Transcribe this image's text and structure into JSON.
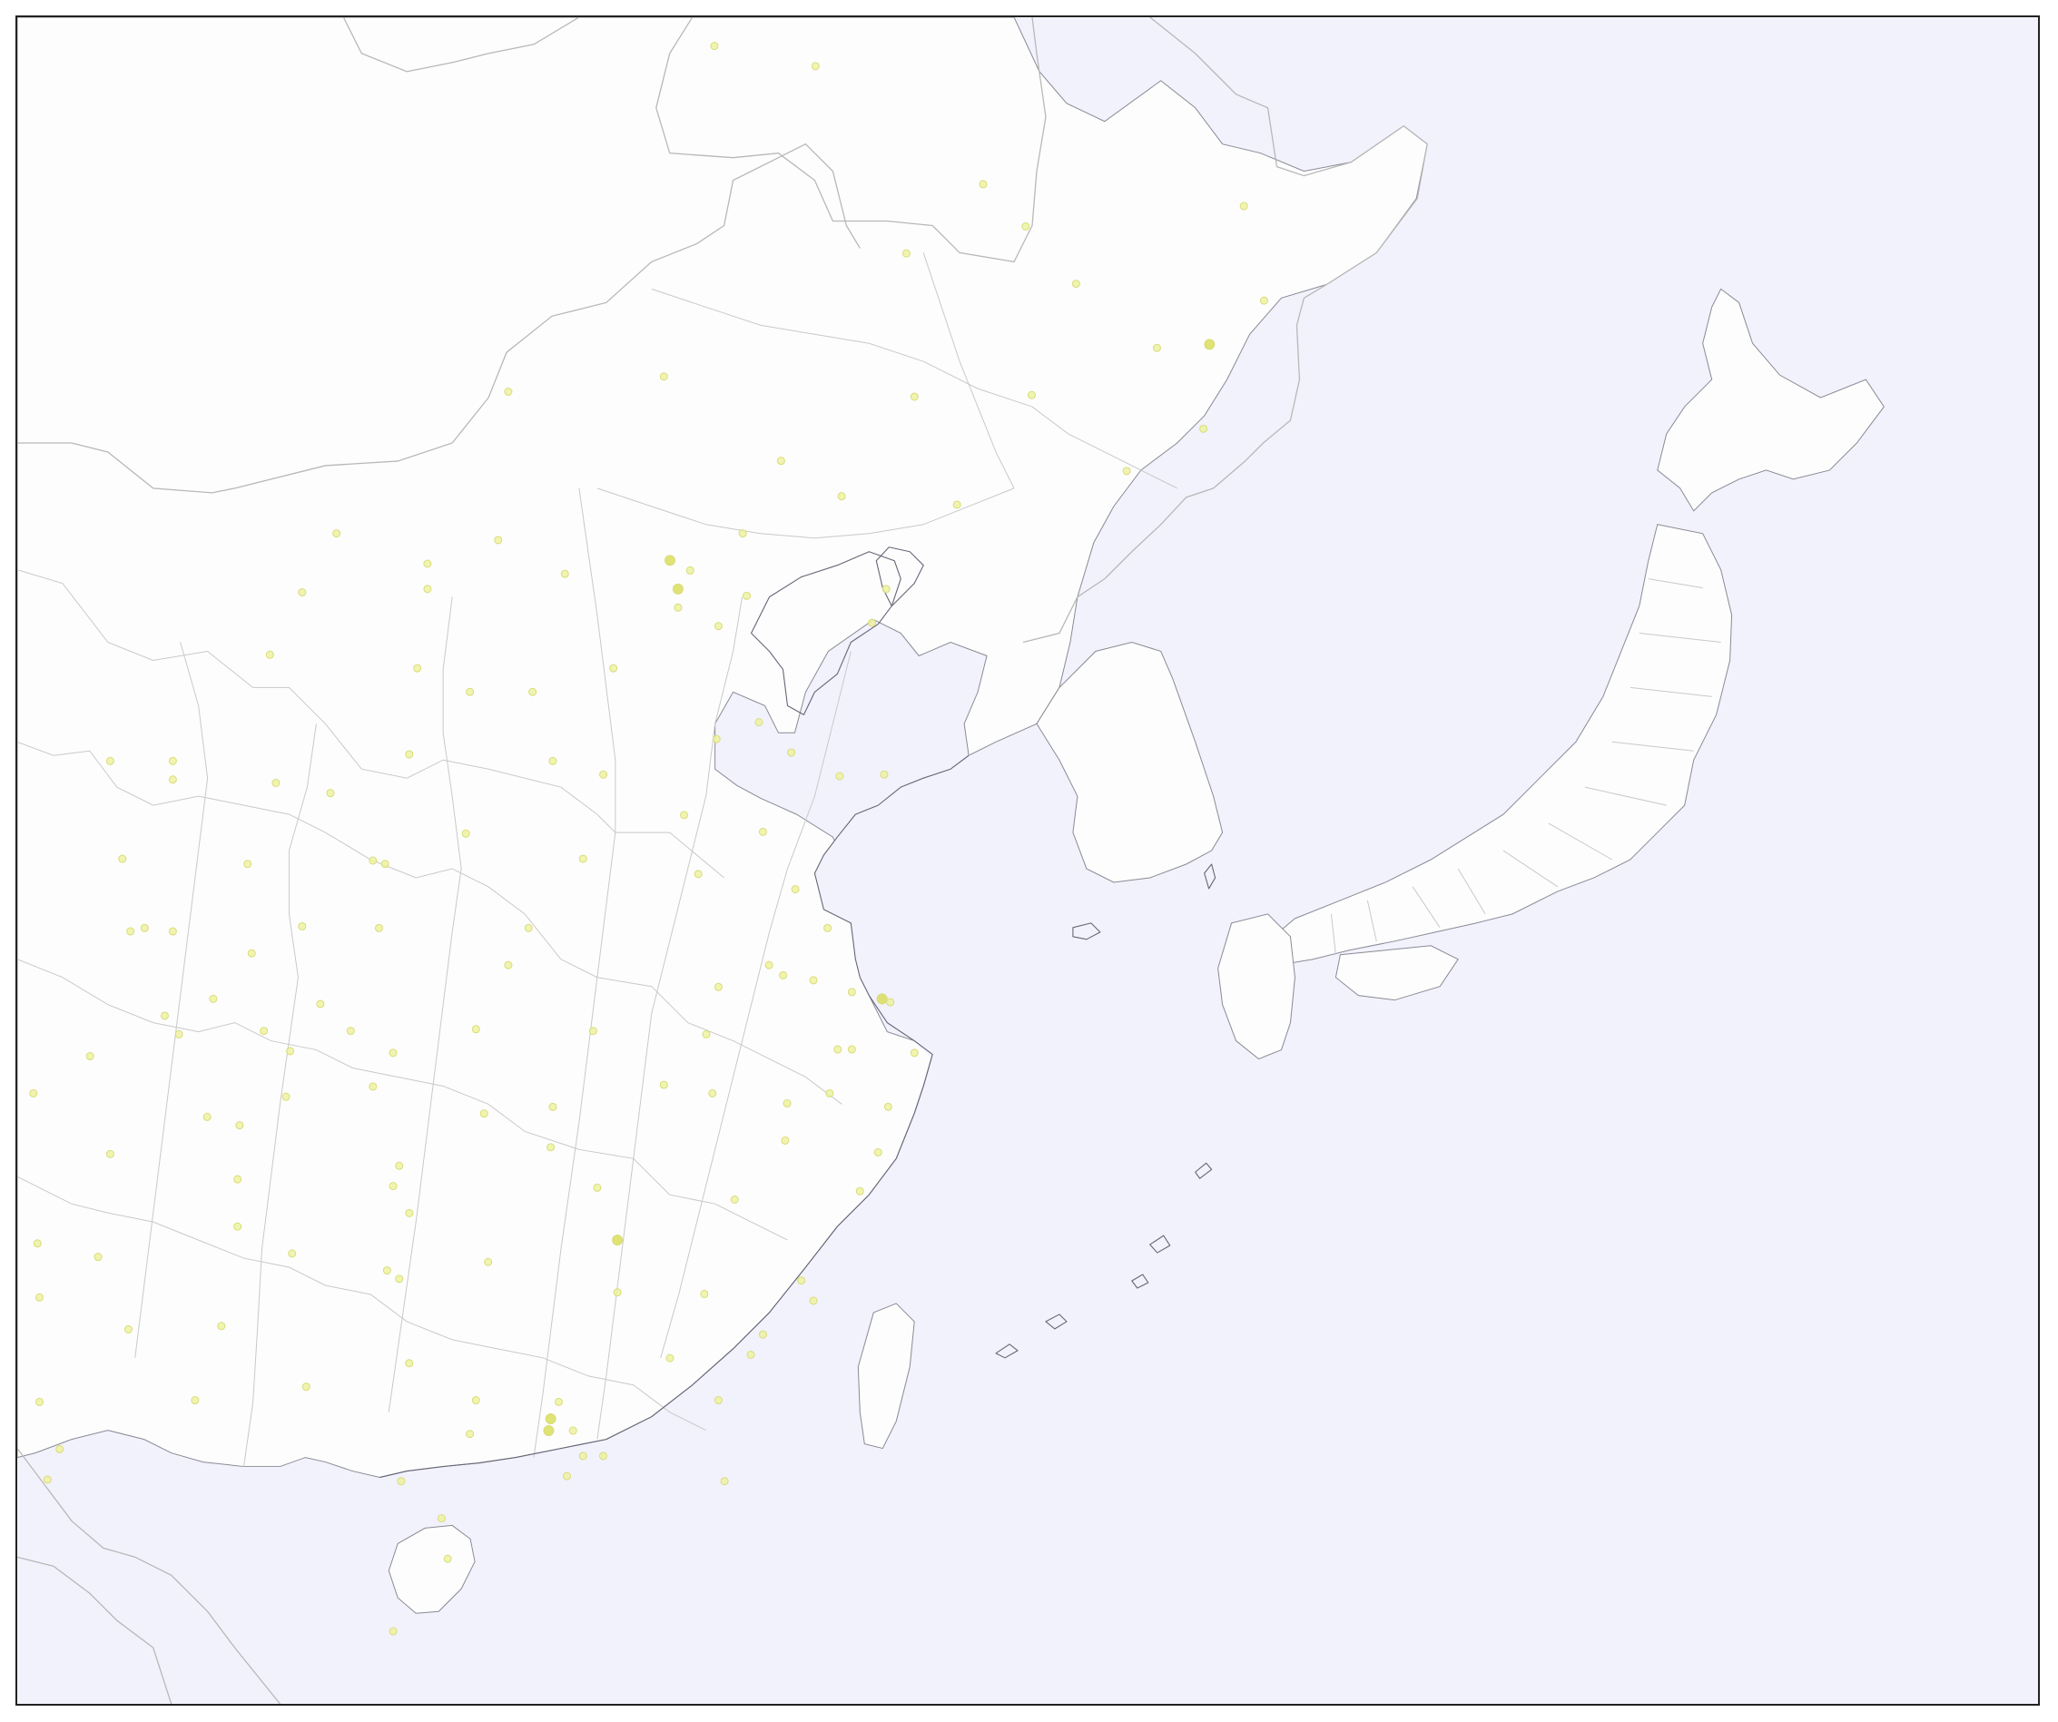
{
  "colors": {
    "frame": "#222222",
    "land": "#fdfdfd",
    "sea": "#f2f2fd",
    "sea_deep": "#f0f0fc",
    "coast": "#666677",
    "border": "#b8b8b8",
    "province": "#c9c9c9",
    "point_fill": "#eef2a0",
    "point_stroke": "#d8dc7a",
    "point_dense": "#d9de5c"
  },
  "points": [
    [
      0.345,
      0.017,
      1
    ],
    [
      0.395,
      0.029,
      1
    ],
    [
      0.478,
      0.099,
      1
    ],
    [
      0.499,
      0.124,
      1
    ],
    [
      0.607,
      0.112,
      1
    ],
    [
      0.44,
      0.14,
      1
    ],
    [
      0.524,
      0.158,
      1
    ],
    [
      0.617,
      0.168,
      1
    ],
    [
      0.59,
      0.194,
      2
    ],
    [
      0.564,
      0.196,
      1
    ],
    [
      0.243,
      0.222,
      1
    ],
    [
      0.32,
      0.213,
      1
    ],
    [
      0.444,
      0.225,
      1
    ],
    [
      0.502,
      0.224,
      1
    ],
    [
      0.587,
      0.244,
      1
    ],
    [
      0.378,
      0.263,
      1
    ],
    [
      0.408,
      0.284,
      1
    ],
    [
      0.465,
      0.289,
      1
    ],
    [
      0.549,
      0.269,
      1
    ],
    [
      0.158,
      0.306,
      1
    ],
    [
      0.238,
      0.31,
      1
    ],
    [
      0.203,
      0.324,
      1
    ],
    [
      0.359,
      0.306,
      1
    ],
    [
      0.323,
      0.322,
      2
    ],
    [
      0.333,
      0.328,
      1
    ],
    [
      0.271,
      0.33,
      1
    ],
    [
      0.203,
      0.339,
      1
    ],
    [
      0.327,
      0.35,
      1
    ],
    [
      0.327,
      0.339,
      2
    ],
    [
      0.361,
      0.343,
      1
    ],
    [
      0.141,
      0.341,
      1
    ],
    [
      0.43,
      0.339,
      1
    ],
    [
      0.423,
      0.359,
      1
    ],
    [
      0.347,
      0.361,
      1
    ],
    [
      0.125,
      0.378,
      1
    ],
    [
      0.198,
      0.386,
      1
    ],
    [
      0.295,
      0.386,
      1
    ],
    [
      0.224,
      0.4,
      1
    ],
    [
      0.255,
      0.4,
      1
    ],
    [
      0.367,
      0.418,
      1
    ],
    [
      0.346,
      0.428,
      1
    ],
    [
      0.383,
      0.436,
      1
    ],
    [
      0.046,
      0.441,
      1
    ],
    [
      0.077,
      0.441,
      1
    ],
    [
      0.194,
      0.437,
      1
    ],
    [
      0.265,
      0.441,
      1
    ],
    [
      0.29,
      0.449,
      1
    ],
    [
      0.407,
      0.45,
      1
    ],
    [
      0.429,
      0.449,
      1
    ],
    [
      0.077,
      0.452,
      1
    ],
    [
      0.128,
      0.454,
      1
    ],
    [
      0.155,
      0.46,
      1
    ],
    [
      0.33,
      0.473,
      1
    ],
    [
      0.369,
      0.483,
      1
    ],
    [
      0.222,
      0.484,
      1
    ],
    [
      0.28,
      0.499,
      1
    ],
    [
      0.052,
      0.499,
      1
    ],
    [
      0.114,
      0.502,
      1
    ],
    [
      0.176,
      0.5,
      1
    ],
    [
      0.182,
      0.502,
      1
    ],
    [
      0.337,
      0.508,
      1
    ],
    [
      0.385,
      0.517,
      1
    ],
    [
      0.141,
      0.539,
      1
    ],
    [
      0.056,
      0.542,
      1
    ],
    [
      0.063,
      0.54,
      1
    ],
    [
      0.077,
      0.542,
      1
    ],
    [
      0.253,
      0.54,
      1
    ],
    [
      0.179,
      0.54,
      1
    ],
    [
      0.401,
      0.54,
      1
    ],
    [
      0.116,
      0.555,
      1
    ],
    [
      0.243,
      0.562,
      1
    ],
    [
      0.372,
      0.562,
      1
    ],
    [
      0.379,
      0.568,
      1
    ],
    [
      0.394,
      0.571,
      1
    ],
    [
      0.347,
      0.575,
      1
    ],
    [
      0.413,
      0.578,
      1
    ],
    [
      0.428,
      0.582,
      2
    ],
    [
      0.432,
      0.584,
      1
    ],
    [
      0.097,
      0.582,
      1
    ],
    [
      0.15,
      0.585,
      1
    ],
    [
      0.073,
      0.592,
      1
    ],
    [
      0.08,
      0.603,
      1
    ],
    [
      0.122,
      0.601,
      1
    ],
    [
      0.165,
      0.601,
      1
    ],
    [
      0.227,
      0.6,
      1
    ],
    [
      0.285,
      0.601,
      1
    ],
    [
      0.341,
      0.603,
      1
    ],
    [
      0.406,
      0.612,
      1
    ],
    [
      0.413,
      0.612,
      1
    ],
    [
      0.444,
      0.614,
      1
    ],
    [
      0.036,
      0.616,
      1
    ],
    [
      0.135,
      0.613,
      1
    ],
    [
      0.186,
      0.614,
      1
    ],
    [
      0.32,
      0.633,
      1
    ],
    [
      0.344,
      0.638,
      1
    ],
    [
      0.008,
      0.638,
      1
    ],
    [
      0.133,
      0.64,
      1
    ],
    [
      0.176,
      0.634,
      1
    ],
    [
      0.381,
      0.644,
      1
    ],
    [
      0.402,
      0.638,
      1
    ],
    [
      0.431,
      0.646,
      1
    ],
    [
      0.094,
      0.652,
      1
    ],
    [
      0.11,
      0.657,
      1
    ],
    [
      0.231,
      0.65,
      1
    ],
    [
      0.265,
      0.646,
      1
    ],
    [
      0.046,
      0.674,
      1
    ],
    [
      0.264,
      0.67,
      1
    ],
    [
      0.38,
      0.666,
      1
    ],
    [
      0.426,
      0.673,
      1
    ],
    [
      0.189,
      0.681,
      1
    ],
    [
      0.109,
      0.689,
      1
    ],
    [
      0.186,
      0.693,
      1
    ],
    [
      0.287,
      0.694,
      1
    ],
    [
      0.355,
      0.701,
      1
    ],
    [
      0.417,
      0.696,
      1
    ],
    [
      0.194,
      0.709,
      1
    ],
    [
      0.109,
      0.717,
      1
    ],
    [
      0.297,
      0.725,
      2
    ],
    [
      0.136,
      0.733,
      1
    ],
    [
      0.01,
      0.727,
      1
    ],
    [
      0.04,
      0.735,
      1
    ],
    [
      0.233,
      0.738,
      1
    ],
    [
      0.183,
      0.743,
      1
    ],
    [
      0.189,
      0.748,
      1
    ],
    [
      0.011,
      0.759,
      1
    ],
    [
      0.297,
      0.756,
      1
    ],
    [
      0.34,
      0.757,
      1
    ],
    [
      0.388,
      0.749,
      1
    ],
    [
      0.394,
      0.761,
      1
    ],
    [
      0.101,
      0.776,
      1
    ],
    [
      0.055,
      0.778,
      1
    ],
    [
      0.369,
      0.781,
      1
    ],
    [
      0.323,
      0.795,
      1
    ],
    [
      0.363,
      0.793,
      1
    ],
    [
      0.194,
      0.798,
      1
    ],
    [
      0.143,
      0.812,
      1
    ],
    [
      0.088,
      0.82,
      1
    ],
    [
      0.227,
      0.82,
      1
    ],
    [
      0.347,
      0.82,
      1
    ],
    [
      0.268,
      0.821,
      1
    ],
    [
      0.011,
      0.821,
      1
    ],
    [
      0.264,
      0.831,
      2
    ],
    [
      0.263,
      0.838,
      2
    ],
    [
      0.275,
      0.838,
      1
    ],
    [
      0.28,
      0.853,
      1
    ],
    [
      0.29,
      0.853,
      1
    ],
    [
      0.224,
      0.84,
      1
    ],
    [
      0.021,
      0.849,
      1
    ],
    [
      0.015,
      0.867,
      1
    ],
    [
      0.272,
      0.865,
      1
    ],
    [
      0.21,
      0.89,
      1
    ],
    [
      0.19,
      0.868,
      1
    ],
    [
      0.213,
      0.914,
      1
    ],
    [
      0.186,
      0.957,
      1
    ],
    [
      0.35,
      0.868,
      1
    ]
  ]
}
